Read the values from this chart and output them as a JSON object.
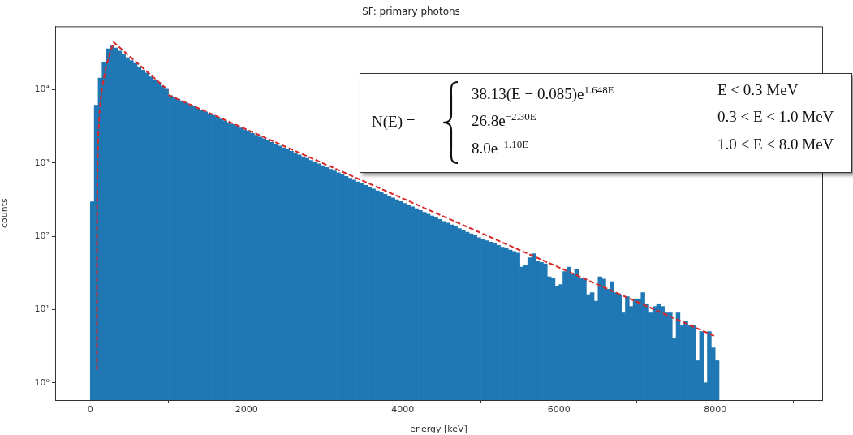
{
  "chart_data": {
    "type": "histogram",
    "title": "SF: primary photons",
    "xlabel": "energy [keV]",
    "ylabel": "counts",
    "log": "y",
    "xlim": [
      -450,
      9370
    ],
    "xticks": [
      0,
      2000,
      4000,
      6000,
      8000
    ],
    "ylim": [
      0.58,
      73600
    ],
    "yticks": [
      {
        "value": 1,
        "label": "10⁰"
      },
      {
        "value": 10,
        "label": "10¹"
      },
      {
        "value": 100,
        "label": "10²"
      },
      {
        "value": 1000,
        "label": "10³"
      },
      {
        "value": 10000,
        "label": "10⁴"
      }
    ],
    "bins": [
      0,
      50,
      100,
      150,
      200,
      250,
      300,
      350,
      400,
      450,
      500,
      550,
      600,
      650,
      700,
      750,
      800,
      850,
      900,
      950,
      1000,
      1050,
      1100,
      1150,
      1200,
      1250,
      1300,
      1350,
      1400,
      1450,
      1500,
      1550,
      1600,
      1650,
      1700,
      1750,
      1800,
      1850,
      1900,
      1950,
      2000,
      2050,
      2100,
      2150,
      2200,
      2250,
      2300,
      2350,
      2400,
      2450,
      2500,
      2550,
      2600,
      2650,
      2700,
      2750,
      2800,
      2850,
      2900,
      2950,
      3000,
      3050,
      3100,
      3150,
      3200,
      3250,
      3300,
      3350,
      3400,
      3450,
      3500,
      3550,
      3600,
      3650,
      3700,
      3750,
      3800,
      3850,
      3900,
      3950,
      4000,
      4050,
      4100,
      4150,
      4200,
      4250,
      4300,
      4350,
      4400,
      4450,
      4500,
      4550,
      4600,
      4650,
      4700,
      4750,
      4800,
      4850,
      4900,
      4950,
      5000,
      5050,
      5100,
      5150,
      5200,
      5250,
      5300,
      5350,
      5400,
      5450,
      5500,
      5550,
      5600,
      5650,
      5700,
      5750,
      5800,
      5850,
      5900,
      5950,
      6000,
      6050,
      6100,
      6150,
      6200,
      6250,
      6300,
      6350,
      6400,
      6450,
      6500,
      6550,
      6600,
      6650,
      6700,
      6750,
      6800,
      6850,
      6900,
      6950,
      7000,
      7050,
      7100,
      7150,
      7200,
      7250,
      7300,
      7350,
      7400,
      7450,
      7500,
      7550,
      7600,
      7650,
      7700,
      7750,
      7800,
      7850,
      7900,
      7950,
      8000,
      8050
    ],
    "series": [
      {
        "type": "histogram",
        "color": "#1f77b4",
        "values": [
          296,
          6170,
          14500,
          24000,
          36300,
          39800,
          37200,
          33900,
          30900,
          27500,
          25100,
          22900,
          20400,
          18600,
          17000,
          15100,
          13800,
          12600,
          11200,
          10200,
          8320,
          7860,
          7430,
          7020,
          6640,
          6270,
          5930,
          5600,
          5300,
          5010,
          4730,
          4470,
          4230,
          4000,
          3780,
          3570,
          3370,
          3190,
          3010,
          2850,
          2690,
          2540,
          2400,
          2270,
          2150,
          2030,
          1920,
          1810,
          1710,
          1620,
          1530,
          1450,
          1370,
          1290,
          1220,
          1160,
          1090,
          1030,
          976,
          922,
          872,
          824,
          779,
          736,
          695,
          657,
          621,
          587,
          555,
          524,
          495,
          468,
          443,
          418,
          395,
          374,
          353,
          334,
          316,
          298,
          282,
          266,
          252,
          238,
          225,
          213,
          201,
          190,
          179,
          170,
          160,
          152,
          143,
          135,
          128,
          121,
          114,
          108,
          102,
          96,
          91,
          87,
          83,
          79,
          75,
          71,
          68,
          65,
          62,
          59,
          38,
          40,
          51,
          58,
          46,
          44,
          42,
          28,
          27,
          21,
          22,
          33,
          38,
          30,
          35,
          27,
          26,
          16,
          17,
          13,
          28,
          26,
          19,
          24,
          17,
          16,
          9,
          15,
          11,
          14,
          14,
          17,
          12,
          9,
          11,
          12,
          11,
          9,
          9,
          4,
          9,
          6,
          7,
          6,
          6,
          2,
          5,
          1,
          5,
          3,
          2
        ]
      },
      {
        "type": "line",
        "color": "#d62728",
        "line_style": "dashed",
        "x": [
          85.01,
          85.1,
          86,
          90,
          100,
          120,
          150,
          200,
          250,
          300,
          1000
        ],
        "values": [
          1.5,
          14.5,
          145,
          732,
          2230,
          5390,
          10500,
          20200,
          31500,
          44500,
          9800
        ]
      },
      {
        "type": "line",
        "color": "#d62728",
        "line_style": "dashed",
        "x": [
          1000,
          8000
        ],
        "values": [
          8500,
          4.3
        ]
      }
    ],
    "annotations": [
      "N(E) =",
      "38.13(E − 0.085)e$^{1.648E}$",
      "26.8e$^{−2.30E}$",
      "8.0e$^{−1.10E}$",
      "E < 0.3 MeV",
      "0.3 < E < 1.0 MeV",
      "1.0 < E < 8.0 MeV"
    ]
  }
}
